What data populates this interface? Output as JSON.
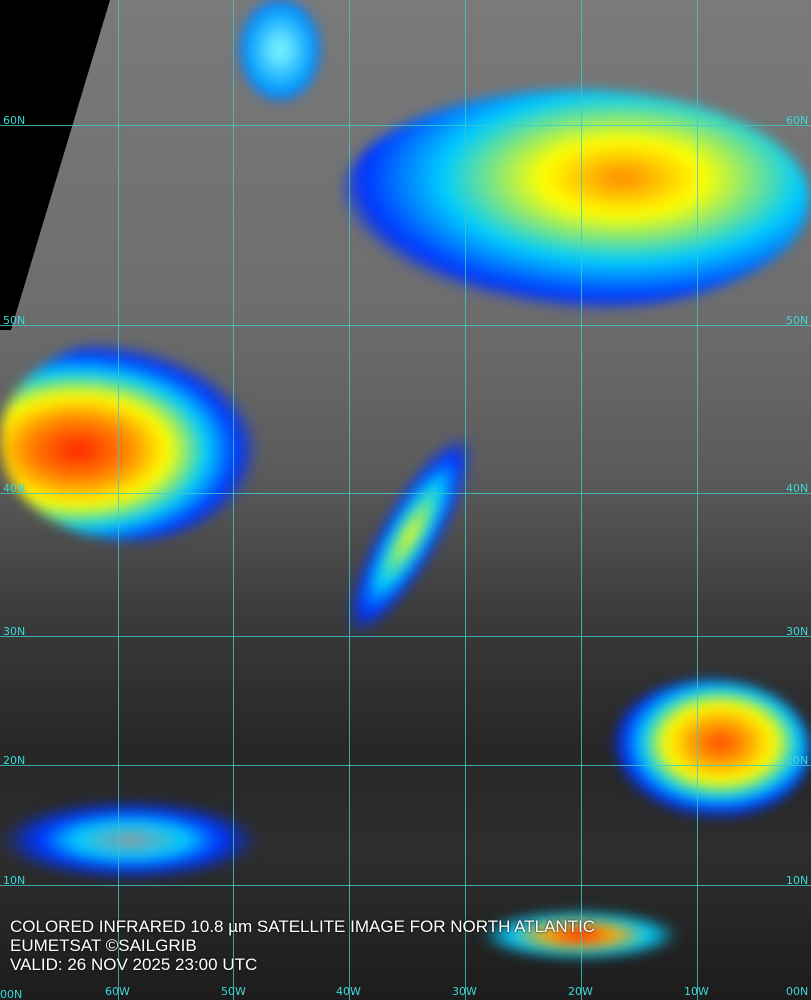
{
  "caption": {
    "line1": "COLORED INFRARED 10.8 µm SATELLITE IMAGE FOR NORTH ATLANTIC",
    "line2": "EUMETSAT ©SAILGRIB",
    "line3": "VALID:  26 NOV 2025 23:00 UTC"
  },
  "lat_labels": [
    "60N",
    "50N",
    "40N",
    "30N",
    "20N",
    "10N"
  ],
  "lon_labels": [
    "60W",
    "50W",
    "40W",
    "30W",
    "20W",
    "10W"
  ],
  "corner_labels": {
    "bottom_left": "00N",
    "bottom_right": "00N"
  },
  "colors": {
    "grid": "#3fc9c9",
    "cold_cloud_scale": [
      "#0000ff",
      "#00c8ff",
      "#ffff00",
      "#ff8000",
      "#ff0000"
    ]
  }
}
